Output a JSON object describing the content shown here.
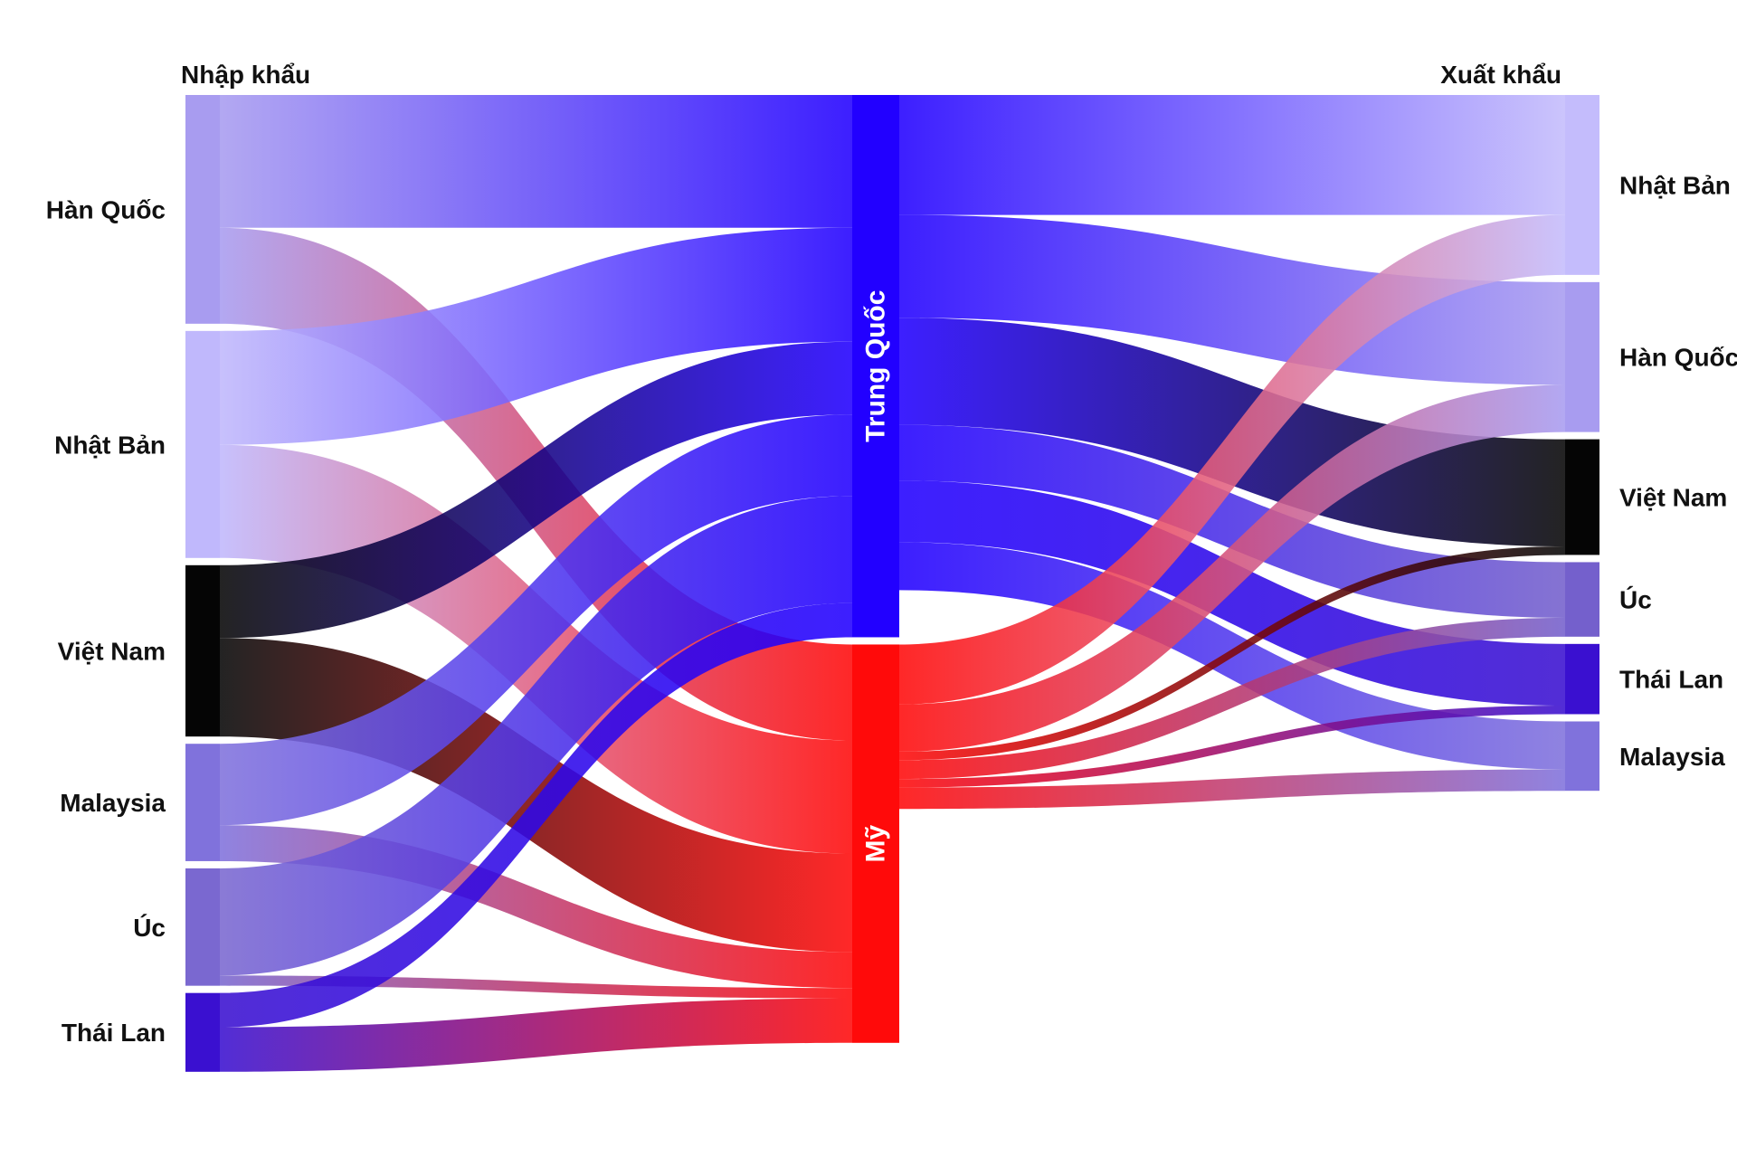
{
  "chart_data": {
    "type": "sankey",
    "column_headers": {
      "left": "Nhập khẩu",
      "right": "Xuất khẩu"
    },
    "left_nodes": [
      {
        "id": "kr_in",
        "label": "Hàn Quốc",
        "color": "#a89cf0"
      },
      {
        "id": "jp_in",
        "label": "Nhật Bản",
        "color": "#c0b8fc"
      },
      {
        "id": "vn_in",
        "label": "Việt Nam",
        "color": "#050505"
      },
      {
        "id": "my_in",
        "label": "Malaysia",
        "color": "#8072dc"
      },
      {
        "id": "au_in",
        "label": "Úc",
        "color": "#7a68d0"
      },
      {
        "id": "th_in",
        "label": "Thái Lan",
        "color": "#3a10d0"
      }
    ],
    "hub_nodes": [
      {
        "id": "cn",
        "label": "Trung Quốc",
        "color": "#2200ff"
      },
      {
        "id": "us",
        "label": "Mỹ",
        "color": "#ff0a0a"
      }
    ],
    "right_nodes": [
      {
        "id": "jp_out",
        "label": "Nhật Bản",
        "color": "#c4bcfc"
      },
      {
        "id": "kr_out",
        "label": "Hàn Quốc",
        "color": "#a89cf0"
      },
      {
        "id": "vn_out",
        "label": "Việt Nam",
        "color": "#050505"
      },
      {
        "id": "au_out",
        "label": "Úc",
        "color": "#7460cc"
      },
      {
        "id": "th_out",
        "label": "Thái Lan",
        "color": "#3a10d0"
      },
      {
        "id": "my_out",
        "label": "Malaysia",
        "color": "#8072dc"
      }
    ],
    "import_flows": [
      {
        "source": "kr_in",
        "target": "cn",
        "value": 155
      },
      {
        "source": "kr_in",
        "target": "us",
        "value": 112
      },
      {
        "source": "jp_in",
        "target": "cn",
        "value": 133
      },
      {
        "source": "jp_in",
        "target": "us",
        "value": 132
      },
      {
        "source": "vn_in",
        "target": "cn",
        "value": 85
      },
      {
        "source": "vn_in",
        "target": "us",
        "value": 115
      },
      {
        "source": "my_in",
        "target": "cn",
        "value": 95
      },
      {
        "source": "my_in",
        "target": "us",
        "value": 42
      },
      {
        "source": "au_in",
        "target": "cn",
        "value": 125
      },
      {
        "source": "au_in",
        "target": "us",
        "value": 12
      },
      {
        "source": "th_in",
        "target": "cn",
        "value": 40
      },
      {
        "source": "th_in",
        "target": "us",
        "value": 52
      }
    ],
    "export_flows": [
      {
        "source": "cn",
        "target": "jp_out",
        "value": 140
      },
      {
        "source": "cn",
        "target": "kr_out",
        "value": 120
      },
      {
        "source": "cn",
        "target": "vn_out",
        "value": 125
      },
      {
        "source": "cn",
        "target": "au_out",
        "value": 65
      },
      {
        "source": "cn",
        "target": "th_out",
        "value": 72
      },
      {
        "source": "cn",
        "target": "my_out",
        "value": 56
      },
      {
        "source": "us",
        "target": "jp_out",
        "value": 70
      },
      {
        "source": "us",
        "target": "kr_out",
        "value": 55
      },
      {
        "source": "us",
        "target": "vn_out",
        "value": 10
      },
      {
        "source": "us",
        "target": "au_out",
        "value": 22
      },
      {
        "source": "us",
        "target": "th_out",
        "value": 10
      },
      {
        "source": "us",
        "target": "my_out",
        "value": 25
      }
    ]
  }
}
